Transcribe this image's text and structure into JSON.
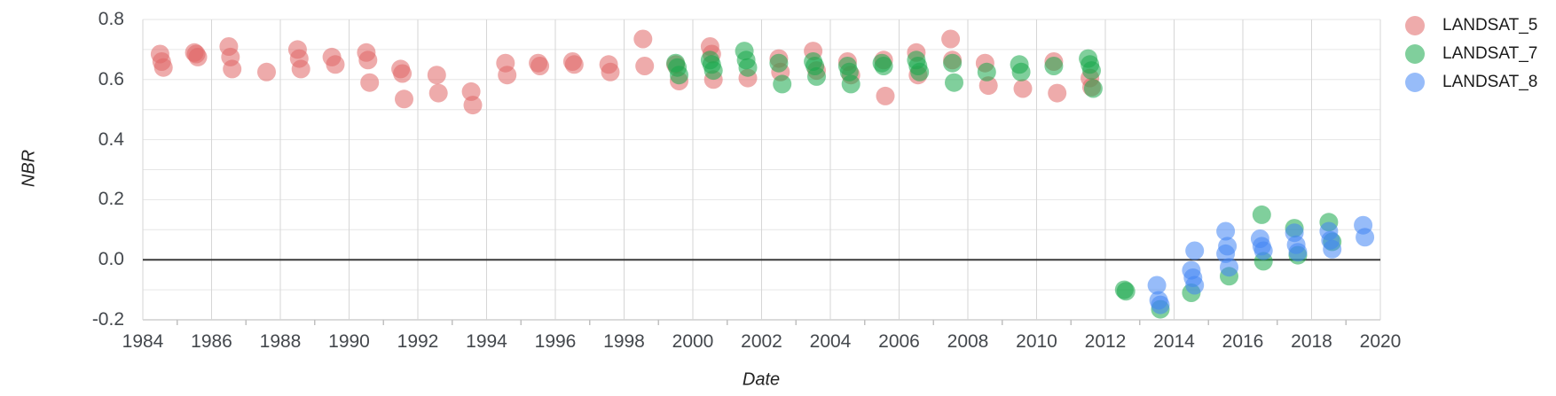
{
  "chart_data": {
    "type": "scatter",
    "title": "",
    "xlabel": "Date",
    "ylabel": "NBR",
    "x_range": [
      1984,
      2020
    ],
    "y_range": [
      -0.2,
      0.8
    ],
    "x_ticks": [
      1984,
      1986,
      1988,
      1990,
      1992,
      1994,
      1996,
      1998,
      2000,
      2002,
      2004,
      2006,
      2008,
      2010,
      2012,
      2014,
      2016,
      2018,
      2020
    ],
    "x_minor_ticks": [
      1985,
      1987,
      1989,
      1991,
      1993,
      1995,
      1997,
      1999,
      2001,
      2003,
      2005,
      2007,
      2009,
      2011,
      2013,
      2015,
      2017,
      2019
    ],
    "y_ticks": [
      [
        0.8,
        "0.8"
      ],
      [
        0.6,
        "0.6"
      ],
      [
        0.4,
        "0.4"
      ],
      [
        0.2,
        "0.2"
      ],
      [
        0,
        "0.0"
      ],
      [
        -0.2,
        "-0.2"
      ]
    ],
    "y_gridlines": [
      0.8,
      0.7,
      0.6,
      0.5,
      0.4,
      0.3,
      0.2,
      0.1,
      0.0,
      -0.1,
      -0.2
    ],
    "zero_line_value": 0,
    "grid": true,
    "legend_position": "right",
    "colors": {
      "h_gridline": "#e6e6e6",
      "v_gridline": "#d6d6d6",
      "zero_line": "#3a3a3a",
      "bottom_axis": "#b7b7b7",
      "minor_tick": "#c0c0c0",
      "tick_text": "#44484d",
      "axis_title_text": "#222222",
      "legend_text": "#1a1a1a"
    },
    "series": [
      {
        "name": "LANDSAT_5",
        "color": "#e06666",
        "points": [
          [
            1984.5,
            0.685
          ],
          [
            1984.55,
            0.66
          ],
          [
            1984.6,
            0.64
          ],
          [
            1985.5,
            0.69
          ],
          [
            1985.55,
            0.685
          ],
          [
            1985.6,
            0.675
          ],
          [
            1986.5,
            0.71
          ],
          [
            1986.55,
            0.675
          ],
          [
            1986.6,
            0.635
          ],
          [
            1987.6,
            0.625
          ],
          [
            1988.5,
            0.7
          ],
          [
            1988.55,
            0.67
          ],
          [
            1988.6,
            0.635
          ],
          [
            1989.5,
            0.675
          ],
          [
            1989.6,
            0.65
          ],
          [
            1990.5,
            0.69
          ],
          [
            1990.55,
            0.665
          ],
          [
            1990.6,
            0.59
          ],
          [
            1991.5,
            0.635
          ],
          [
            1991.55,
            0.62
          ],
          [
            1991.6,
            0.535
          ],
          [
            1992.55,
            0.615
          ],
          [
            1992.6,
            0.555
          ],
          [
            1993.55,
            0.56
          ],
          [
            1993.6,
            0.515
          ],
          [
            1994.55,
            0.655
          ],
          [
            1994.6,
            0.615
          ],
          [
            1995.5,
            0.655
          ],
          [
            1995.55,
            0.645
          ],
          [
            1996.5,
            0.66
          ],
          [
            1996.55,
            0.65
          ],
          [
            1997.55,
            0.65
          ],
          [
            1997.6,
            0.625
          ],
          [
            1998.55,
            0.735
          ],
          [
            1998.6,
            0.645
          ],
          [
            1999.5,
            0.65
          ],
          [
            1999.6,
            0.595
          ],
          [
            2000.5,
            0.71
          ],
          [
            2000.55,
            0.685
          ],
          [
            2000.6,
            0.6
          ],
          [
            2001.6,
            0.605
          ],
          [
            2002.5,
            0.67
          ],
          [
            2002.55,
            0.625
          ],
          [
            2003.5,
            0.695
          ],
          [
            2003.6,
            0.63
          ],
          [
            2004.5,
            0.66
          ],
          [
            2004.6,
            0.615
          ],
          [
            2005.55,
            0.665
          ],
          [
            2005.6,
            0.545
          ],
          [
            2006.5,
            0.69
          ],
          [
            2006.55,
            0.615
          ],
          [
            2007.5,
            0.735
          ],
          [
            2007.55,
            0.665
          ],
          [
            2008.5,
            0.655
          ],
          [
            2008.6,
            0.58
          ],
          [
            2009.6,
            0.57
          ],
          [
            2010.5,
            0.66
          ],
          [
            2010.6,
            0.555
          ],
          [
            2011.55,
            0.605
          ],
          [
            2011.6,
            0.575
          ]
        ]
      },
      {
        "name": "LANDSAT_7",
        "color": "#17a84b",
        "points": [
          [
            1999.5,
            0.655
          ],
          [
            1999.55,
            0.64
          ],
          [
            1999.6,
            0.615
          ],
          [
            2000.5,
            0.665
          ],
          [
            2000.55,
            0.65
          ],
          [
            2000.6,
            0.63
          ],
          [
            2001.5,
            0.695
          ],
          [
            2001.55,
            0.665
          ],
          [
            2001.6,
            0.64
          ],
          [
            2002.5,
            0.655
          ],
          [
            2002.6,
            0.585
          ],
          [
            2003.5,
            0.66
          ],
          [
            2003.55,
            0.645
          ],
          [
            2003.6,
            0.61
          ],
          [
            2004.5,
            0.645
          ],
          [
            2004.55,
            0.625
          ],
          [
            2004.6,
            0.585
          ],
          [
            2005.5,
            0.655
          ],
          [
            2005.55,
            0.645
          ],
          [
            2006.5,
            0.665
          ],
          [
            2006.55,
            0.645
          ],
          [
            2006.6,
            0.625
          ],
          [
            2007.55,
            0.655
          ],
          [
            2007.6,
            0.59
          ],
          [
            2008.55,
            0.625
          ],
          [
            2009.5,
            0.65
          ],
          [
            2009.55,
            0.625
          ],
          [
            2010.5,
            0.645
          ],
          [
            2011.5,
            0.67
          ],
          [
            2011.55,
            0.65
          ],
          [
            2011.6,
            0.63
          ],
          [
            2011.65,
            0.57
          ],
          [
            2012.55,
            -0.1
          ],
          [
            2012.6,
            -0.105
          ],
          [
            2013.6,
            -0.165
          ],
          [
            2014.5,
            -0.11
          ],
          [
            2015.6,
            -0.055
          ],
          [
            2016.55,
            0.15
          ],
          [
            2016.6,
            -0.005
          ],
          [
            2017.5,
            0.105
          ],
          [
            2017.6,
            0.015
          ],
          [
            2018.5,
            0.125
          ],
          [
            2018.6,
            0.06
          ]
        ]
      },
      {
        "name": "LANDSAT_8",
        "color": "#4285f4",
        "points": [
          [
            2013.5,
            -0.085
          ],
          [
            2013.55,
            -0.135
          ],
          [
            2013.6,
            -0.15
          ],
          [
            2014.5,
            -0.035
          ],
          [
            2014.55,
            -0.06
          ],
          [
            2014.6,
            -0.085
          ],
          [
            2014.6,
            0.03
          ],
          [
            2015.5,
            0.095
          ],
          [
            2015.55,
            0.045
          ],
          [
            2015.5,
            0.02
          ],
          [
            2015.6,
            -0.025
          ],
          [
            2016.5,
            0.07
          ],
          [
            2016.55,
            0.045
          ],
          [
            2016.6,
            0.03
          ],
          [
            2017.5,
            0.09
          ],
          [
            2017.55,
            0.05
          ],
          [
            2017.6,
            0.025
          ],
          [
            2018.5,
            0.095
          ],
          [
            2018.55,
            0.065
          ],
          [
            2018.6,
            0.035
          ],
          [
            2019.5,
            0.115
          ],
          [
            2019.55,
            0.075
          ]
        ]
      }
    ]
  },
  "legend": {
    "items": [
      {
        "label": "LANDSAT_5"
      },
      {
        "label": "LANDSAT_7"
      },
      {
        "label": "LANDSAT_8"
      }
    ]
  }
}
